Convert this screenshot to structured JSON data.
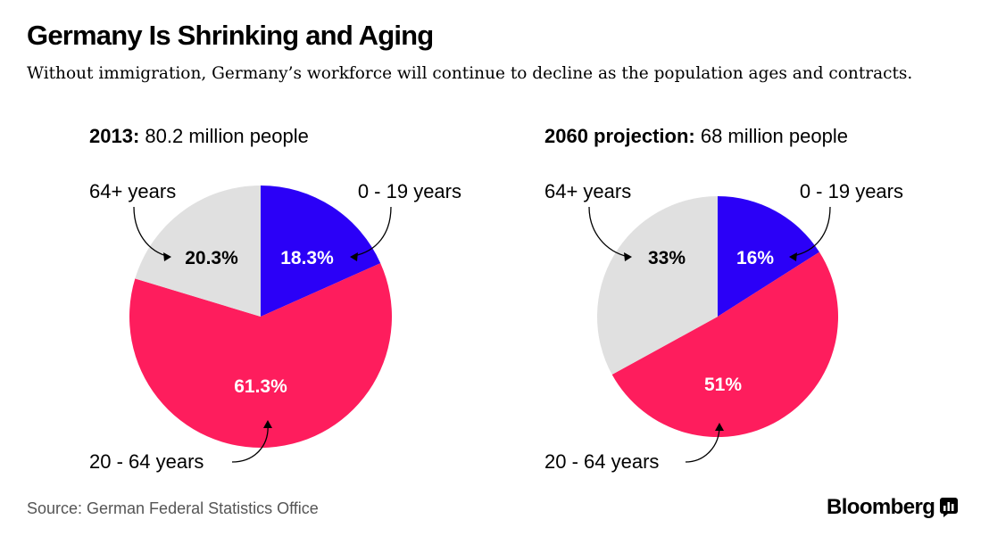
{
  "title": "Germany Is Shrinking and Aging",
  "subtitle": "Without immigration, Germany’s workforce will continue to decline as the population ages and contracts.",
  "source": "Source: German Federal Statistics Office",
  "brand": "Bloomberg",
  "colors": {
    "age_0_19": "#2b00f7",
    "age_20_64": "#fe1d5d",
    "age_64_plus": "#e0e0e0"
  },
  "chart_data": [
    {
      "type": "pie",
      "title_bold": "2013:",
      "title_rest": " 80.2 million people",
      "slices": [
        {
          "label": "0 - 19 years",
          "value": 18.3,
          "display": "18.3%",
          "color": "#2b00f7",
          "value_color": "#ffffff"
        },
        {
          "label": "20 - 64 years",
          "value": 61.3,
          "display": "61.3%",
          "color": "#fe1d5d",
          "value_color": "#ffffff"
        },
        {
          "label": "64+ years",
          "value": 20.3,
          "display": "20.3%",
          "color": "#e0e0e0",
          "value_color": "#000000"
        }
      ]
    },
    {
      "type": "pie",
      "title_bold": "2060 projection:",
      "title_rest": " 68 million people",
      "slices": [
        {
          "label": "0 - 19 years",
          "value": 16,
          "display": "16%",
          "color": "#2b00f7",
          "value_color": "#ffffff"
        },
        {
          "label": "20 - 64 years",
          "value": 51,
          "display": "51%",
          "color": "#fe1d5d",
          "value_color": "#ffffff"
        },
        {
          "label": "64+ years",
          "value": 33,
          "display": "33%",
          "color": "#e0e0e0",
          "value_color": "#000000"
        }
      ]
    }
  ]
}
